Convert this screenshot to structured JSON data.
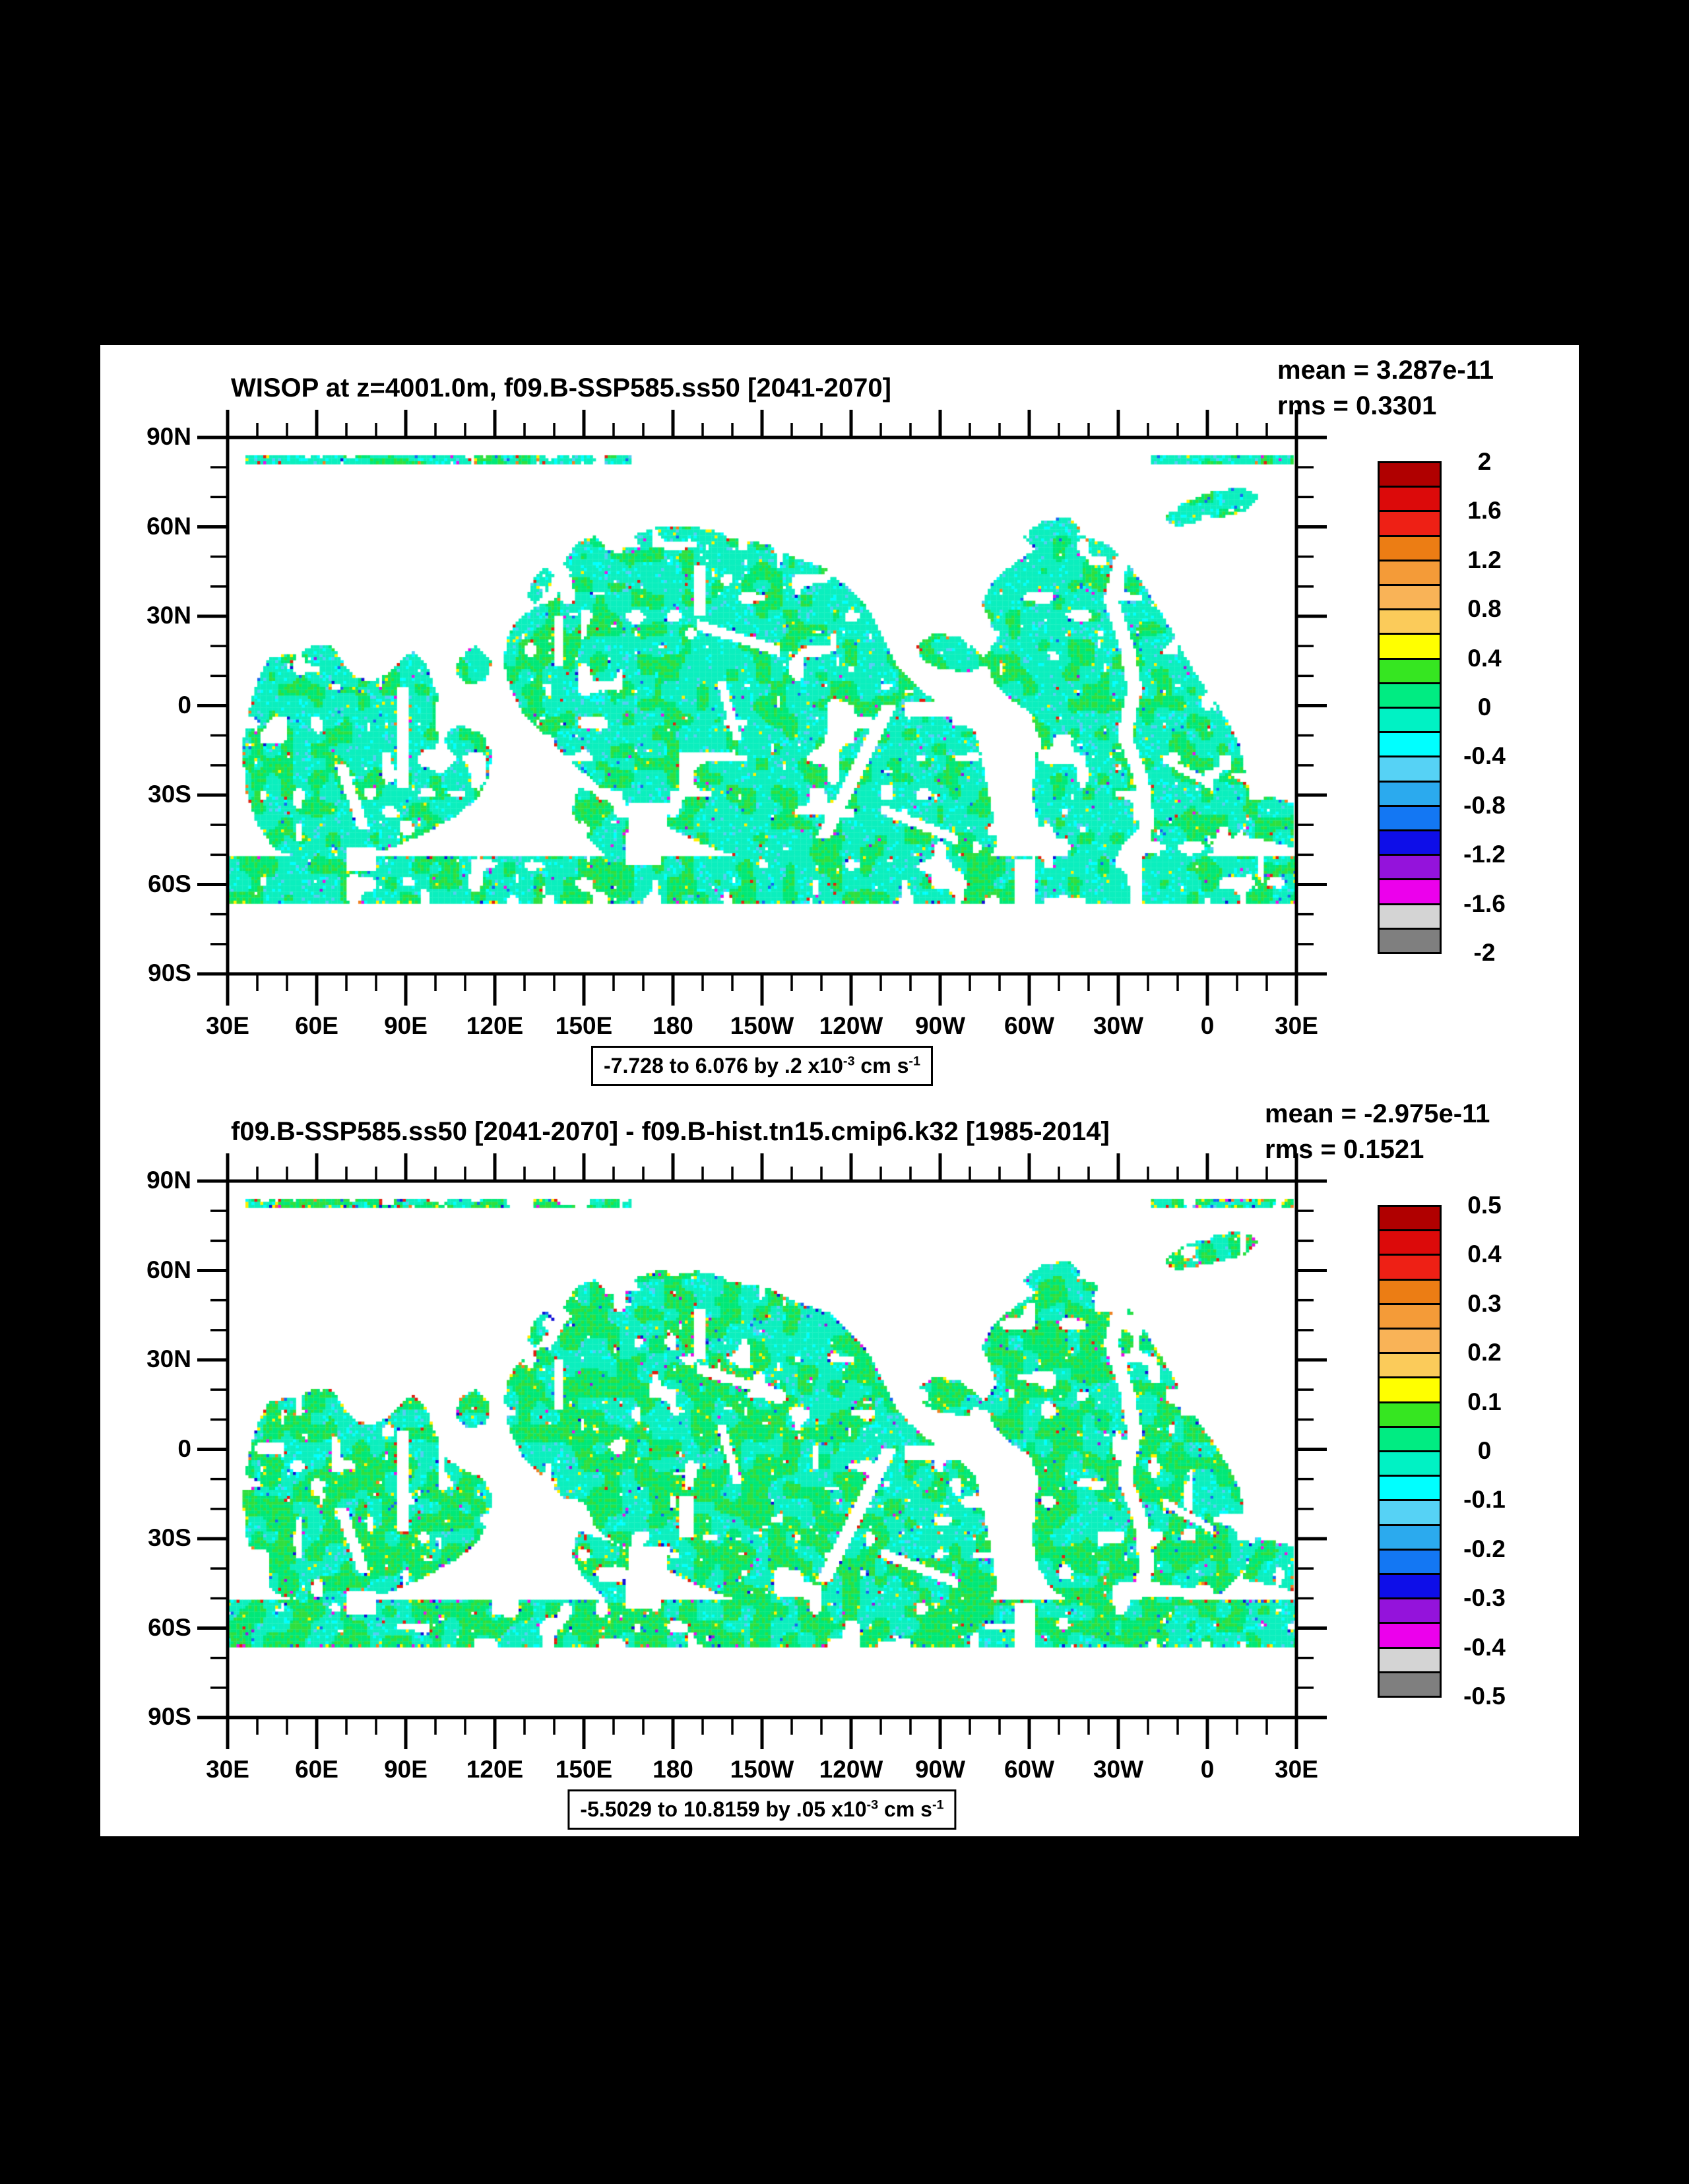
{
  "page": {
    "background": "#000000",
    "surface_background": "#ffffff"
  },
  "chart_data": [
    {
      "type": "heatmap",
      "title": "WISOP at z=4001.0m, f09.B-SSP585.ss50 [2041-2070]",
      "variable": "WISOP",
      "depth_label": "z=4001.0m",
      "case": "f09.B-SSP585.ss50",
      "period": "2041-2070",
      "mean_label": "mean = 3.287e-11",
      "rms_label": "rms = 0.3301",
      "mean": 3.287e-11,
      "rms": 0.3301,
      "annotation_parts": [
        "-7.728 to 6.076 by .2 x10",
        "-3",
        " cm s",
        "-1"
      ],
      "field_range": {
        "min": -7.728,
        "max": 6.076,
        "interval": 0.2,
        "units": "x10^-3 cm s^-1"
      },
      "colorbar": {
        "min": -2,
        "max": 2,
        "step": 0.2,
        "tick_labels": [
          "2",
          "1.6",
          "1.2",
          "0.8",
          "0.4",
          "0",
          "-0.4",
          "-0.8",
          "-1.2",
          "-1.6",
          "-2"
        ],
        "colors_top_to_bottom": [
          "#B00000",
          "#DC0A0A",
          "#EE2015",
          "#EC7D14",
          "#F49B38",
          "#F9B357",
          "#FBCB5A",
          "#FFFF00",
          "#36E621",
          "#00EC82",
          "#00F2C4",
          "#00FFFF",
          "#56D2F5",
          "#2BAAEE",
          "#1377F3",
          "#0E0EE8",
          "#9413DB",
          "#EC00EC",
          "#D4D4D4",
          "#7F7F7F"
        ]
      },
      "style": {
        "green_threshold": 0.62,
        "edge_speck_prob": 0.12,
        "seed": 7
      }
    },
    {
      "type": "heatmap",
      "title": "f09.B-SSP585.ss50 [2041-2070] - f09.B-hist.tn15.cmip6.k32 [1985-2014]",
      "variable": "WISOP difference",
      "case": "f09.B-SSP585.ss50 minus f09.B-hist.tn15.cmip6.k32",
      "period": "2041-2070 minus 1985-2014",
      "mean_label": "mean = -2.975e-11",
      "rms_label": "rms = 0.1521",
      "mean": -2.975e-11,
      "rms": 0.1521,
      "annotation_parts": [
        "-5.5029 to 10.8159 by .05 x10",
        "-3",
        " cm s",
        "-1"
      ],
      "field_range": {
        "min": -5.5029,
        "max": 10.8159,
        "interval": 0.05,
        "units": "x10^-3 cm s^-1"
      },
      "colorbar": {
        "min": -0.5,
        "max": 0.5,
        "step": 0.05,
        "tick_labels": [
          "0.5",
          "0.4",
          "0.3",
          "0.2",
          "0.1",
          "0",
          "-0.1",
          "-0.2",
          "-0.3",
          "-0.4",
          "-0.5"
        ],
        "colors_top_to_bottom": [
          "#B00000",
          "#DC0A0A",
          "#EE2015",
          "#EC7D14",
          "#F49B38",
          "#F9B357",
          "#FBCB5A",
          "#FFFF00",
          "#36E621",
          "#00EC82",
          "#00F2C4",
          "#00FFFF",
          "#56D2F5",
          "#2BAAEE",
          "#1377F3",
          "#0E0EE8",
          "#9413DB",
          "#EC00EC",
          "#D4D4D4",
          "#7F7F7F"
        ]
      },
      "style": {
        "green_threshold": 0.47,
        "edge_speck_prob": 0.22,
        "seed": 13
      }
    }
  ],
  "axes": {
    "x_major_lons": [
      30,
      60,
      90,
      120,
      150,
      180,
      210,
      240,
      270,
      300,
      330,
      360,
      390
    ],
    "x_tick_labels": [
      "30E",
      "60E",
      "90E",
      "120E",
      "150E",
      "180",
      "150W",
      "120W",
      "90W",
      "60W",
      "30W",
      "0",
      "30E"
    ],
    "x_minor_step_deg": 10,
    "y_major_lats": [
      90,
      60,
      30,
      0,
      -30,
      -60,
      -90
    ],
    "y_tick_labels": [
      "90N",
      "60N",
      "30N",
      "0",
      "30S",
      "60S",
      "90S"
    ],
    "y_minor_step_deg": 10,
    "lon_range": [
      30,
      390
    ],
    "lat_range": [
      90,
      -90
    ]
  },
  "field_colors": {
    "turquoise": "#0BEFBE",
    "spring": "#00E878",
    "green": "#2FDF3F",
    "cyan": "#00FFFF",
    "sky": "#55CCF5",
    "yellow": "#FFF000",
    "red": "#E02010",
    "orange": "#F08020",
    "blue": "#1566F2",
    "darkblue": "#1111D8",
    "magenta": "#E613E6",
    "violet": "#9A18DE"
  },
  "map_regions": {
    "note": "approximate deep-ocean (>4000m) coverage polygons in [lon,lat]; lon runs 30E..390E",
    "ocean": [
      [
        [
          36,
          84
        ],
        [
          166,
          84
        ],
        [
          166,
          81.5
        ],
        [
          36,
          81.5
        ]
      ],
      [
        [
          341,
          84
        ],
        [
          389.5,
          84
        ],
        [
          389.5,
          81.5
        ],
        [
          341,
          81.5
        ]
      ],
      [
        [
          44,
          16
        ],
        [
          53,
          17
        ],
        [
          59,
          20
        ],
        [
          65,
          20
        ],
        [
          69,
          14
        ],
        [
          73,
          9
        ],
        [
          79,
          8
        ],
        [
          85,
          11
        ],
        [
          89,
          16
        ],
        [
          93,
          18
        ],
        [
          97,
          13
        ],
        [
          100,
          5
        ],
        [
          103,
          -3
        ],
        [
          109,
          -7
        ],
        [
          116,
          -10
        ],
        [
          119,
          -16
        ],
        [
          118,
          -24
        ],
        [
          114,
          -32
        ],
        [
          106,
          -38
        ],
        [
          97,
          -43
        ],
        [
          86,
          -48
        ],
        [
          72,
          -51
        ],
        [
          57,
          -52
        ],
        [
          46,
          -49
        ],
        [
          40,
          -40
        ],
        [
          36,
          -28
        ],
        [
          35,
          -14
        ],
        [
          37,
          -3
        ],
        [
          40,
          8
        ]
      ],
      [
        [
          108,
          17
        ],
        [
          114,
          20
        ],
        [
          119,
          15
        ],
        [
          117,
          8
        ],
        [
          111,
          7
        ],
        [
          107,
          11
        ]
      ],
      [
        [
          124,
          22
        ],
        [
          127,
          28
        ],
        [
          134,
          33
        ],
        [
          140,
          35
        ],
        [
          143,
          41
        ],
        [
          149,
          48
        ],
        [
          157,
          52
        ],
        [
          169,
          53
        ],
        [
          184,
          53
        ],
        [
          200,
          56
        ],
        [
          212,
          54
        ],
        [
          222,
          49
        ],
        [
          232,
          46
        ],
        [
          238,
          41
        ],
        [
          243,
          36
        ],
        [
          247,
          30
        ],
        [
          251,
          22
        ],
        [
          255,
          14
        ],
        [
          260,
          8
        ],
        [
          266,
          3
        ],
        [
          272,
          -1
        ],
        [
          278,
          -5
        ],
        [
          282,
          -10
        ],
        [
          284,
          -18
        ],
        [
          286,
          -28
        ],
        [
          288,
          -38
        ],
        [
          289,
          -47
        ],
        [
          286,
          -54
        ],
        [
          275,
          -56
        ],
        [
          258,
          -56
        ],
        [
          242,
          -56
        ],
        [
          226,
          -55
        ],
        [
          212,
          -53
        ],
        [
          198,
          -50
        ],
        [
          188,
          -46
        ],
        [
          178,
          -41
        ],
        [
          168,
          -36
        ],
        [
          158,
          -30
        ],
        [
          150,
          -23
        ],
        [
          143,
          -16
        ],
        [
          136,
          -9
        ],
        [
          129,
          -2
        ],
        [
          125,
          6
        ],
        [
          123,
          14
        ]
      ],
      [
        [
          148,
          -28
        ],
        [
          158,
          -31
        ],
        [
          168,
          -36
        ],
        [
          174,
          -43
        ],
        [
          170,
          -51
        ],
        [
          158,
          -51
        ],
        [
          150,
          -44
        ],
        [
          146,
          -36
        ]
      ],
      [
        [
          167,
          57
        ],
        [
          176,
          60
        ],
        [
          187,
          60
        ],
        [
          197,
          58
        ],
        [
          201,
          54
        ],
        [
          190,
          52
        ],
        [
          175,
          52
        ],
        [
          169,
          53
        ]
      ],
      [
        [
          143,
          47
        ],
        [
          147,
          54
        ],
        [
          154,
          57
        ],
        [
          158,
          53
        ],
        [
          152,
          47
        ],
        [
          147,
          44
        ]
      ],
      [
        [
          131,
          36
        ],
        [
          133,
          42
        ],
        [
          137,
          47
        ],
        [
          140,
          44
        ],
        [
          138,
          38
        ],
        [
          134,
          34
        ]
      ],
      [
        [
          262,
          20
        ],
        [
          268,
          24
        ],
        [
          276,
          23
        ],
        [
          283,
          18
        ],
        [
          287,
          14
        ],
        [
          280,
          11
        ],
        [
          270,
          12
        ],
        [
          264,
          15
        ]
      ],
      [
        [
          285,
          16
        ],
        [
          289,
          22
        ],
        [
          287,
          28
        ],
        [
          284,
          34
        ],
        [
          287,
          40
        ],
        [
          293,
          46
        ],
        [
          300,
          51
        ],
        [
          308,
          56
        ],
        [
          318,
          57
        ],
        [
          327,
          54
        ],
        [
          333,
          48
        ],
        [
          338,
          41
        ],
        [
          343,
          33
        ],
        [
          348,
          25
        ],
        [
          352,
          17
        ],
        [
          357,
          9
        ],
        [
          362,
          2
        ],
        [
          367,
          -6
        ],
        [
          371,
          -14
        ],
        [
          373,
          -24
        ],
        [
          375,
          -34
        ],
        [
          372,
          -42
        ],
        [
          366,
          -48
        ],
        [
          356,
          -52
        ],
        [
          342,
          -54
        ],
        [
          328,
          -54
        ],
        [
          317,
          -53
        ],
        [
          308,
          -48
        ],
        [
          303,
          -40
        ],
        [
          301,
          -30
        ],
        [
          302,
          -20
        ],
        [
          303,
          -10
        ],
        [
          300,
          -2
        ],
        [
          293,
          2
        ],
        [
          288,
          8
        ]
      ],
      [
        [
          376,
          -30
        ],
        [
          389.5,
          -33
        ],
        [
          389.5,
          -48
        ],
        [
          372,
          -44
        ]
      ],
      [
        [
          345,
          63
        ],
        [
          352,
          68
        ],
        [
          362,
          72
        ],
        [
          372,
          73
        ],
        [
          378,
          70
        ],
        [
          372,
          65
        ],
        [
          360,
          62
        ],
        [
          350,
          60
        ]
      ],
      [
        [
          298,
          57
        ],
        [
          305,
          62
        ],
        [
          313,
          63
        ],
        [
          318,
          59
        ],
        [
          311,
          54
        ],
        [
          302,
          53
        ]
      ],
      [
        [
          30,
          -51
        ],
        [
          390,
          -51
        ],
        [
          390,
          -66.5
        ],
        [
          30,
          -66.5
        ]
      ]
    ],
    "holes": [
      [
        [
          333.8,
          50
        ],
        [
          330.1,
          35
        ],
        [
          335.3,
          20
        ],
        [
          338,
          5
        ],
        [
          334.5,
          -10
        ],
        [
          340.3,
          -25
        ],
        [
          342.1,
          -40
        ],
        [
          339.2,
          -50
        ],
        [
          334.2,
          -50
        ],
        [
          337.1,
          -40
        ],
        [
          335.3,
          -25
        ],
        [
          329.5,
          -10
        ],
        [
          333,
          5
        ],
        [
          330.3,
          20
        ],
        [
          325.1,
          35
        ],
        [
          328.8,
          50
        ]
      ],
      [
        [
          255.3,
          0
        ],
        [
          244,
          -22.5
        ],
        [
          232.8,
          -45
        ],
        [
          228.2,
          -45
        ],
        [
          239.4,
          -22.5
        ],
        [
          250.7,
          0
        ]
      ],
      [
        [
          250,
          -33.3
        ],
        [
          276,
          -43.7
        ],
        [
          276,
          -47.1
        ],
        [
          250,
          -36.7
        ]
      ],
      [
        [
          188,
          28.8
        ],
        [
          216,
          19.8
        ],
        [
          216,
          16.2
        ],
        [
          188,
          25.2
        ]
      ],
      [
        [
          187,
          47
        ],
        [
          191,
          47
        ],
        [
          191,
          30
        ],
        [
          187,
          30
        ]
      ],
      [
        [
          87.5,
          6
        ],
        [
          91.5,
          6
        ],
        [
          91.5,
          -28
        ],
        [
          87.5,
          -28
        ]
      ],
      [
        [
          140,
          30
        ],
        [
          143,
          30
        ],
        [
          143,
          13
        ],
        [
          140,
          13
        ]
      ],
      [
        [
          182,
          -16
        ],
        [
          187,
          -16
        ],
        [
          187,
          -30
        ],
        [
          182,
          -30
        ]
      ],
      [
        [
          70,
          -48
        ],
        [
          80,
          -48
        ],
        [
          80,
          -56
        ],
        [
          70,
          -56
        ]
      ],
      [
        [
          258,
          1
        ],
        [
          281,
          1
        ],
        [
          281,
          -4
        ],
        [
          258,
          -4
        ]
      ],
      [
        [
          345,
          -16.5
        ],
        [
          362,
          -25.9
        ],
        [
          362,
          -28.9
        ],
        [
          345,
          -19.5
        ]
      ],
      [
        [
          194.5,
          8
        ],
        [
          197.5,
          8
        ],
        [
          203.5,
          -12
        ],
        [
          200.5,
          -12
        ]
      ],
      [
        [
          66,
          -20
        ],
        [
          70,
          -20
        ],
        [
          78,
          -42
        ],
        [
          74,
          -42
        ]
      ],
      [
        [
          165,
          -33
        ],
        [
          179,
          -33
        ],
        [
          176,
          -54
        ],
        [
          164,
          -54
        ]
      ],
      [
        [
          295,
          -52
        ],
        [
          302,
          -52
        ],
        [
          302,
          -67
        ],
        [
          295,
          -67
        ]
      ]
    ]
  }
}
